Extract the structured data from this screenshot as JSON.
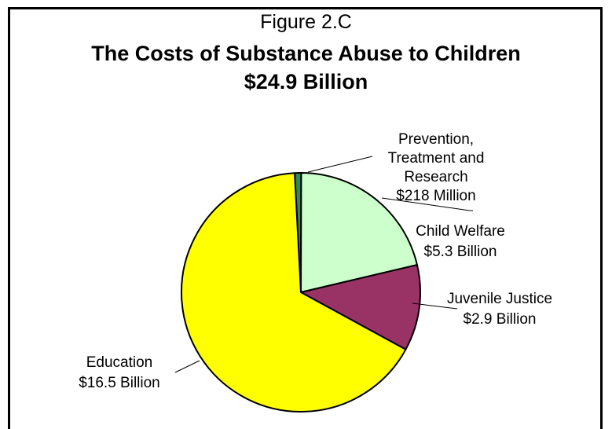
{
  "chart_data": {
    "type": "pie",
    "figure_label": "Figure 2.C",
    "title": "The Costs of Substance Abuse to Children",
    "subtitle": "$24.9 Billion",
    "total_billion": 24.9,
    "slices": [
      {
        "name": "Prevention, Treatment and Research",
        "value_billion": 0.218,
        "value_text": "$218 Million",
        "label_lines": [
          "Prevention,",
          "Treatment and",
          "Research",
          "$218 Million"
        ],
        "color": "#2e8b57"
      },
      {
        "name": "Child Welfare",
        "value_billion": 5.3,
        "value_text": "$5.3 Billion",
        "label_lines": [
          "Child Welfare",
          "$5.3 Billion"
        ],
        "color": "#ccffcc"
      },
      {
        "name": "Juvenile Justice",
        "value_billion": 2.9,
        "value_text": "$2.9 Billion",
        "label_lines": [
          "Juvenile Justice",
          "$2.9 Billion"
        ],
        "color": "#993366"
      },
      {
        "name": "Education",
        "value_billion": 16.5,
        "value_text": "$16.5 Billion",
        "label_lines": [
          "Education",
          "$16.5 Billion"
        ],
        "color": "#ffff00"
      }
    ]
  }
}
